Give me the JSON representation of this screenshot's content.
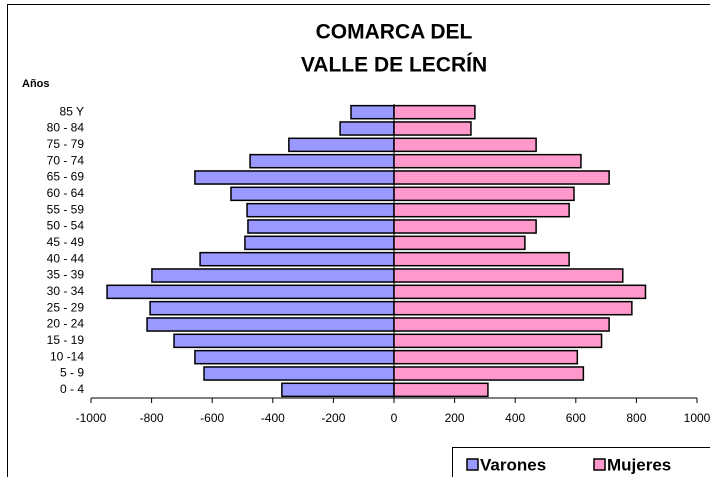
{
  "chart_data": {
    "type": "population-pyramid",
    "title": [
      "COMARCA DEL",
      "VALLE DE LECRÍN"
    ],
    "y_label": "Años",
    "categories": [
      "85 Y",
      "80 - 84",
      "75 - 79",
      "70 - 74",
      "65 - 69",
      "60 - 64",
      "55 - 59",
      "50 - 54",
      "45 - 49",
      "40 - 44",
      "35 - 39",
      "30 - 34",
      "25 - 29",
      "20 - 24",
      "15 - 19",
      "10 -14",
      "5 - 9",
      "0 - 4"
    ],
    "series": [
      {
        "name": "Varones",
        "color": "#9999ff",
        "values": [
          -142,
          -178,
          -347,
          -475,
          -657,
          -538,
          -485,
          -482,
          -492,
          -640,
          -799,
          -947,
          -805,
          -815,
          -726,
          -657,
          -627,
          -370
        ]
      },
      {
        "name": "Mujeres",
        "color": "#ff99cc",
        "values": [
          267,
          254,
          469,
          617,
          710,
          594,
          578,
          469,
          432,
          578,
          755,
          830,
          785,
          710,
          685,
          605,
          625,
          310
        ]
      }
    ],
    "xlim": [
      -1000,
      1000
    ],
    "xticks": [
      -1000,
      -800,
      -600,
      -400,
      -200,
      0,
      200,
      400,
      600,
      800,
      1000
    ],
    "legend": "bottom-right"
  }
}
